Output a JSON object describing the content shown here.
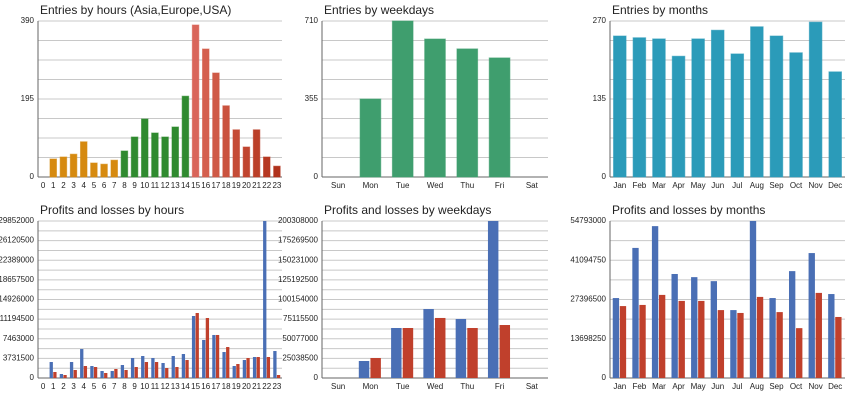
{
  "chart_data": [
    {
      "type": "bar",
      "title": "Entries by hours (Asia,Europe,USA)",
      "categories": [
        "0",
        "1",
        "2",
        "3",
        "4",
        "5",
        "6",
        "7",
        "8",
        "9",
        "10",
        "11",
        "12",
        "13",
        "14",
        "15",
        "16",
        "17",
        "18",
        "19",
        "20",
        "21",
        "22",
        "23"
      ],
      "values": [
        0,
        45,
        50,
        57,
        88,
        35,
        32,
        42,
        65,
        100,
        145,
        110,
        100,
        125,
        202,
        380,
        320,
        260,
        178,
        118,
        75,
        118,
        50,
        27
      ],
      "colors": [
        "#d68a10",
        "#d68a10",
        "#d68a10",
        "#d68a10",
        "#d68a10",
        "#d68a10",
        "#d68a10",
        "#d68a10",
        "#2f8a2f",
        "#2f8a2f",
        "#2f8a2f",
        "#2f8a2f",
        "#2f8a2f",
        "#2f8a2f",
        "#2f8a2f",
        "#d9655a",
        "#d4604f",
        "#cf5a47",
        "#ca533f",
        "#c54c37",
        "#c0452f",
        "#bb3f28",
        "#b63822",
        "#b0321c"
      ],
      "ylim": [
        0,
        390
      ],
      "yticks": [
        0,
        195,
        390
      ],
      "grid": true
    },
    {
      "type": "bar",
      "title": "Entries by weekdays",
      "categories": [
        "Sun",
        "Mon",
        "Tue",
        "Wed",
        "Thu",
        "Fri",
        "Sat"
      ],
      "values": [
        0,
        355,
        710,
        628,
        583,
        542,
        0
      ],
      "color": "#3f9e6e",
      "ylim": [
        0,
        710
      ],
      "yticks": [
        0,
        355,
        710
      ],
      "grid": true
    },
    {
      "type": "bar",
      "title": "Entries by months",
      "categories": [
        "Jan",
        "Feb",
        "Mar",
        "Apr",
        "May",
        "Jun",
        "Jul",
        "Aug",
        "Sep",
        "Oct",
        "Nov",
        "Dec"
      ],
      "values": [
        244,
        241,
        239,
        209,
        239,
        254,
        213,
        260,
        244,
        215,
        268,
        182
      ],
      "color": "#2b9bb9",
      "ylim": [
        0,
        270
      ],
      "yticks": [
        0,
        135,
        270
      ],
      "grid": true
    },
    {
      "type": "grouped-bar",
      "title": "Profits and losses by hours",
      "categories": [
        "0",
        "1",
        "2",
        "3",
        "4",
        "5",
        "6",
        "7",
        "8",
        "9",
        "10",
        "11",
        "12",
        "13",
        "14",
        "15",
        "16",
        "17",
        "18",
        "19",
        "20",
        "21",
        "22",
        "23"
      ],
      "series": [
        {
          "color": "#4a6fb5",
          "values": [
            0,
            3040000,
            760000,
            3040000,
            5510000,
            2280000,
            1330000,
            1330000,
            2470000,
            3800000,
            4180000,
            3800000,
            2850000,
            4180000,
            4560000,
            11790000,
            7230000,
            8180000,
            4940000,
            2280000,
            3420000,
            3990000,
            29852000,
            5130000
          ]
        },
        {
          "color": "#c0402c",
          "values": [
            0,
            1140000,
            570000,
            1520000,
            2280000,
            2090000,
            950000,
            1710000,
            1520000,
            2090000,
            3040000,
            3040000,
            1900000,
            2090000,
            3420000,
            12360000,
            11410000,
            8180000,
            5890000,
            2660000,
            3800000,
            3990000,
            3990000,
            570000
          ]
        }
      ],
      "ylim": [
        0,
        29852000
      ],
      "yticks": [
        0,
        3731500,
        7463000,
        11194500,
        14926000,
        18657500,
        22389000,
        26120500,
        29852000
      ],
      "grid": true
    },
    {
      "type": "grouped-bar",
      "title": "Profits and losses by weekdays",
      "categories": [
        "Sun",
        "Mon",
        "Tue",
        "Wed",
        "Thu",
        "Fri",
        "Sat"
      ],
      "series": [
        {
          "color": "#4a6fb5",
          "values": [
            0,
            21700000,
            63800000,
            88000000,
            75300000,
            200308000,
            0
          ]
        },
        {
          "color": "#c0402c",
          "values": [
            0,
            25500000,
            63800000,
            76600000,
            63800000,
            67600000,
            0
          ]
        }
      ],
      "ylim": [
        0,
        200308000
      ],
      "yticks": [
        0,
        25038500,
        50077000,
        75115500,
        100154000,
        125192500,
        150231000,
        175269500,
        200308000
      ],
      "grid": true
    },
    {
      "type": "grouped-bar",
      "title": "Profits and losses by months",
      "categories": [
        "Jan",
        "Feb",
        "Mar",
        "Apr",
        "May",
        "Jun",
        "Jul",
        "Aug",
        "Sep",
        "Oct",
        "Nov",
        "Dec"
      ],
      "series": [
        {
          "color": "#4a6fb5",
          "values": [
            27900000,
            45400000,
            53000000,
            36300000,
            35200000,
            33800000,
            23700000,
            54793000,
            27900000,
            37300000,
            43600000,
            29300000
          ]
        },
        {
          "color": "#c0402c",
          "values": [
            25100000,
            25500000,
            29000000,
            26900000,
            26900000,
            23700000,
            22700000,
            28300000,
            23000000,
            17400000,
            29700000,
            21300000
          ]
        }
      ],
      "ylim": [
        0,
        54793000
      ],
      "yticks": [
        0,
        13698250,
        27396500,
        41094750,
        54793000
      ],
      "grid": true
    }
  ]
}
